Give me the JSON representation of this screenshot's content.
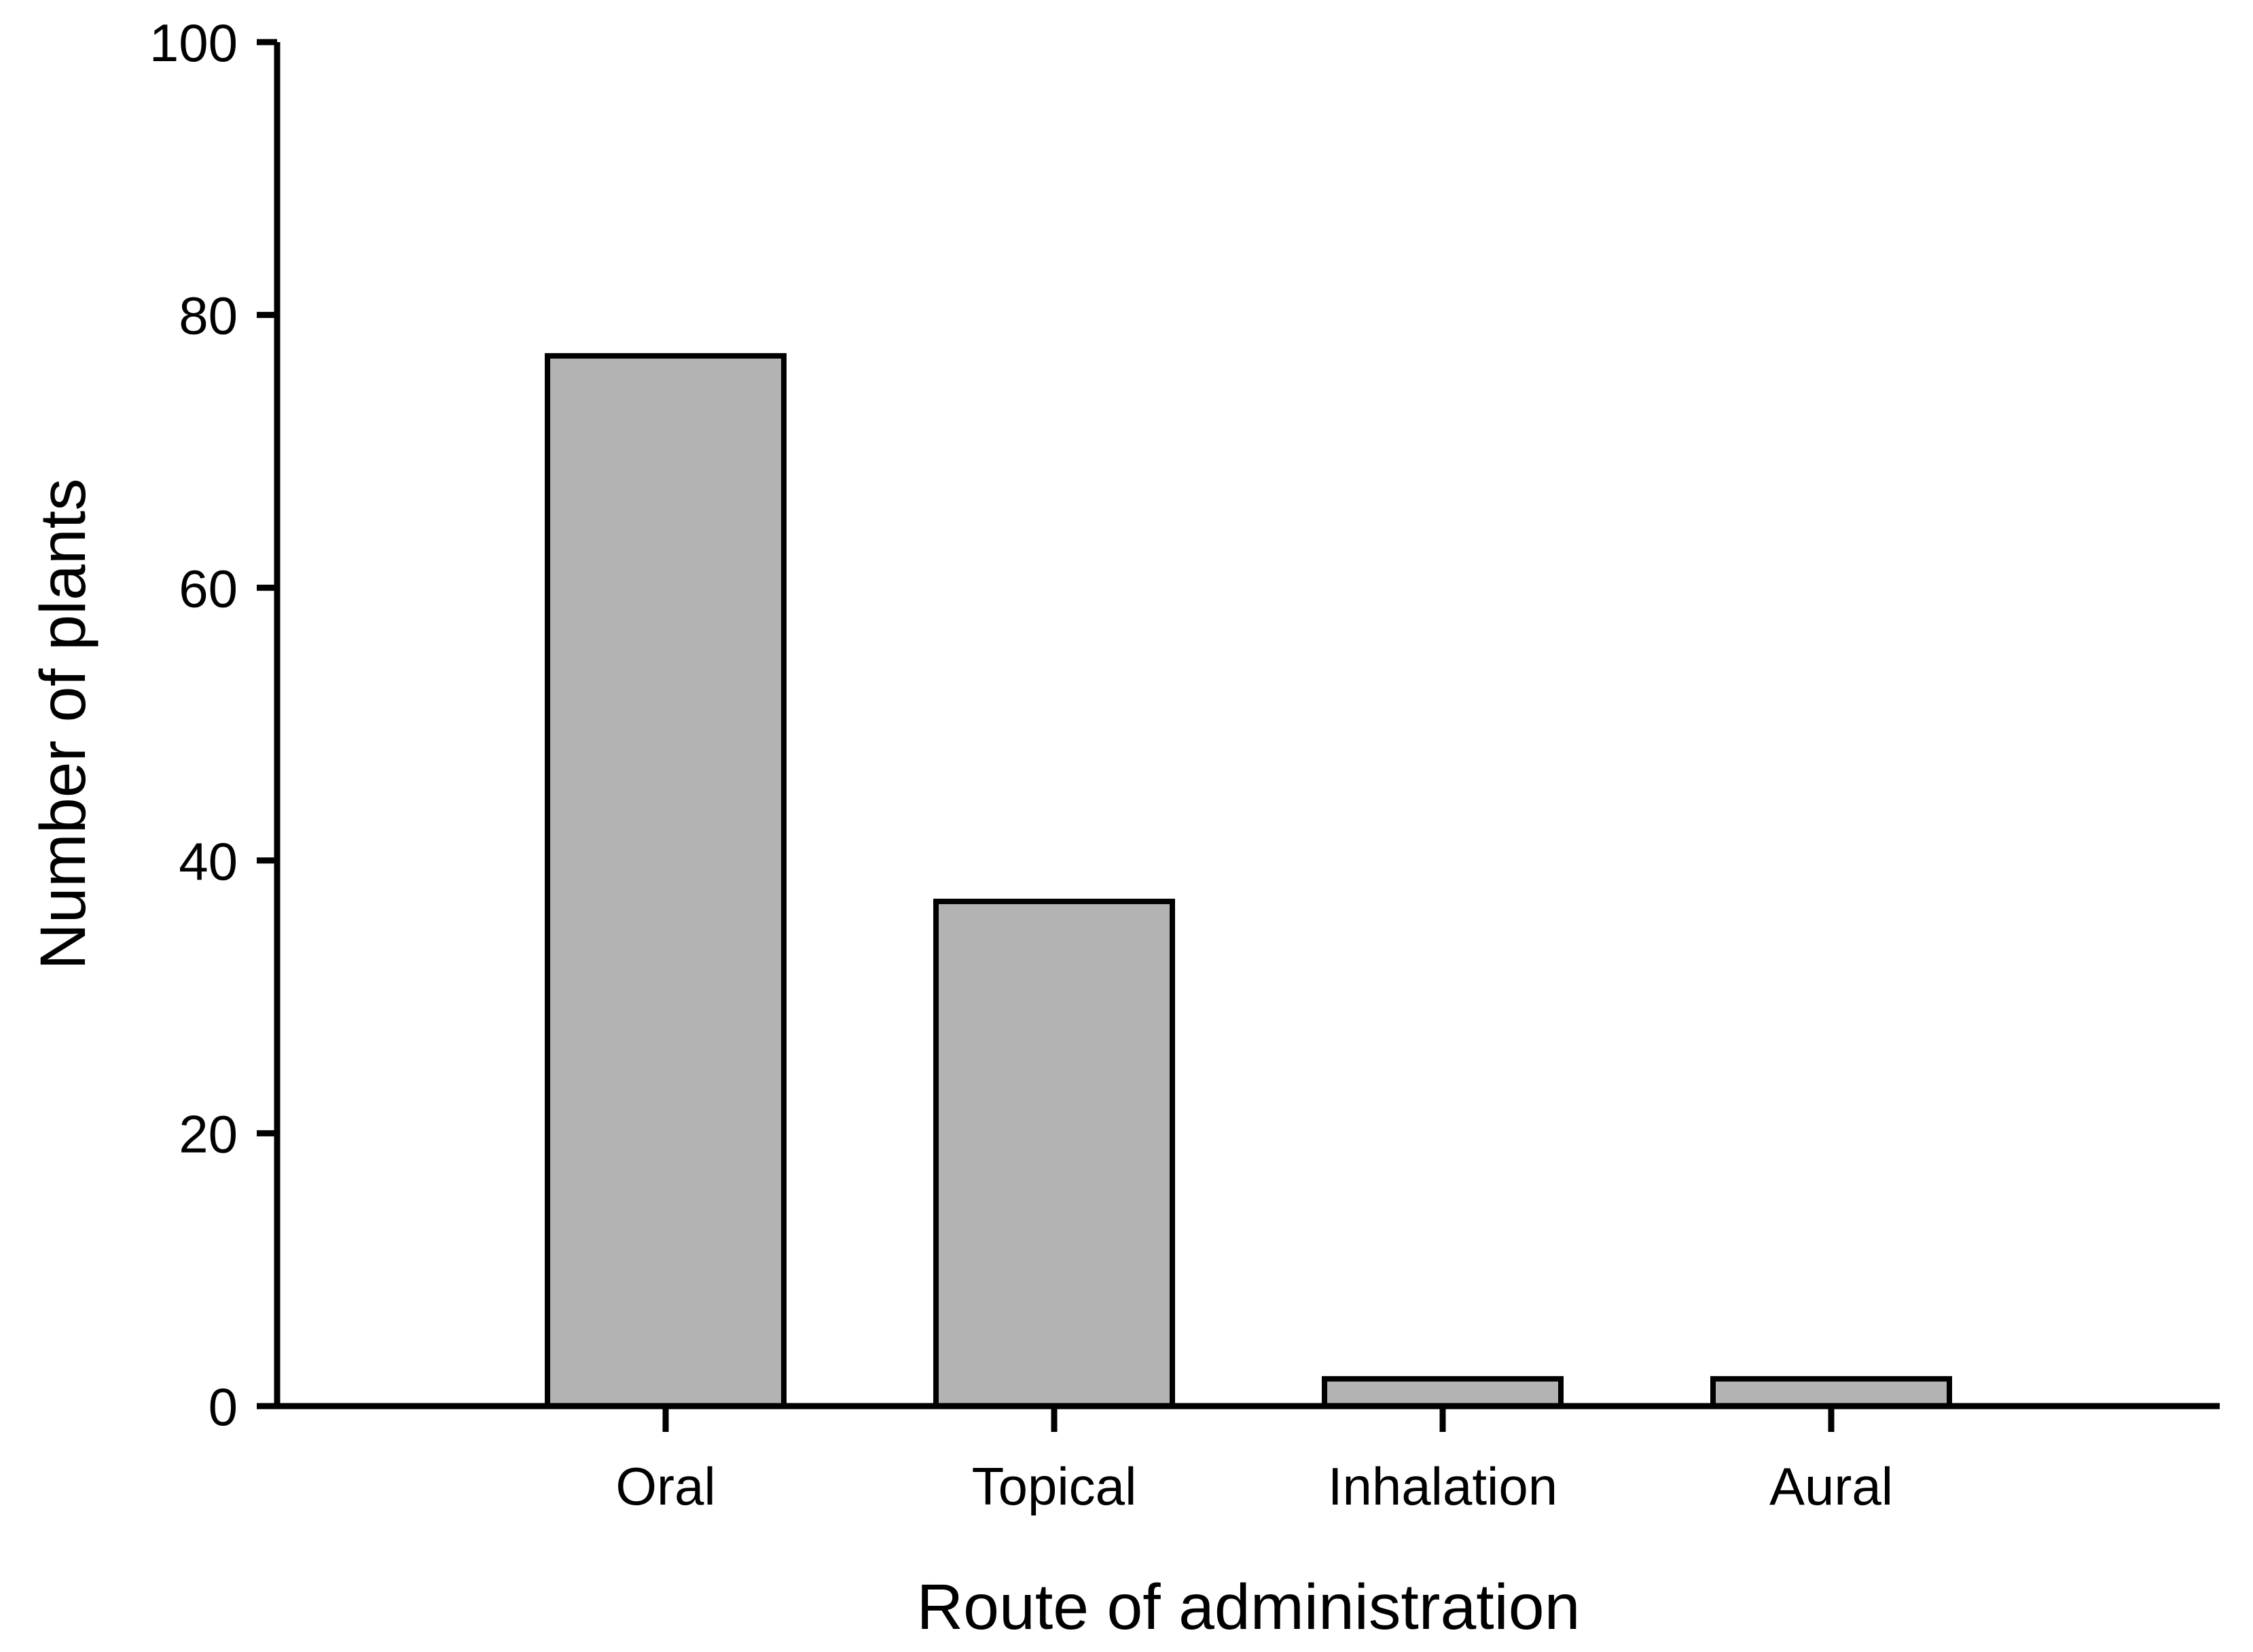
{
  "page": {
    "background_color": "#ffffff"
  },
  "chart_data": {
    "type": "bar",
    "title": "",
    "xlabel": "Route of administration",
    "ylabel": "Number of plants",
    "categories": [
      "Oral",
      "Topical",
      "Inhalation",
      "Aural"
    ],
    "values": [
      77,
      37,
      2,
      2
    ],
    "ylim": [
      0,
      100
    ],
    "yticks": [
      0,
      20,
      40,
      60,
      80,
      100
    ],
    "grid": false,
    "legend_position": "none",
    "bar_fill_color": "#b3b3b3",
    "bar_border_color": "#000000",
    "axis_color": "#000000",
    "text_color": "#000000"
  }
}
